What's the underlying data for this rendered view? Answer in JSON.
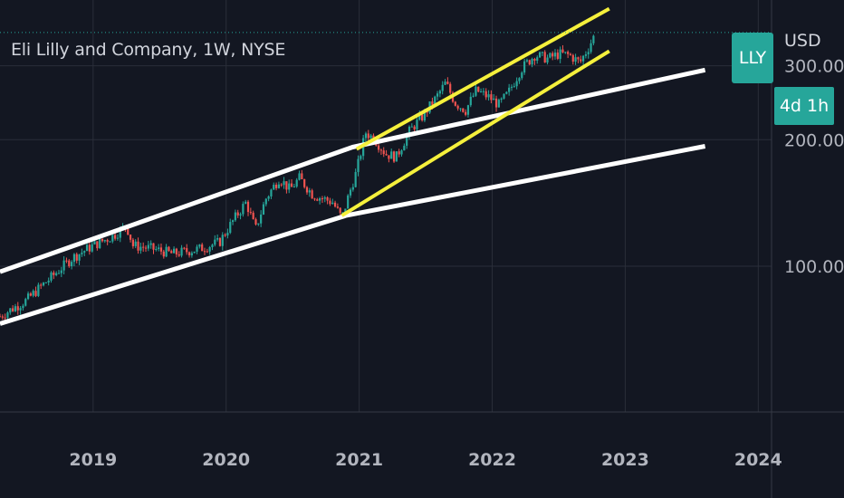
{
  "header": {
    "symbol_title": "Eli Lilly and Company, 1W, NYSE",
    "ticker_badge": "LLY",
    "currency": "USD",
    "countdown": "4d 1h"
  },
  "colors": {
    "background": "#131722",
    "grid": "#2a2e39",
    "up": "#26a69a",
    "down": "#ef5350",
    "channel_lines": "#f5f03c",
    "trend_lines": "#ffffff",
    "axis_text": "#b2b5be",
    "last_price_line": "#26a69a"
  },
  "chart_data": {
    "type": "candlestick",
    "title": "Eli Lilly and Company, 1W, NYSE",
    "xlabel": "",
    "ylabel": "",
    "x_range": [
      2018.3,
      2024.1
    ],
    "y_range": [
      45,
      430
    ],
    "y_scale": "log",
    "x_ticks": [
      {
        "value": 2019,
        "label": "2019"
      },
      {
        "value": 2020,
        "label": "2020"
      },
      {
        "value": 2021,
        "label": "2021"
      },
      {
        "value": 2022,
        "label": "2022"
      },
      {
        "value": 2023,
        "label": "2023"
      },
      {
        "value": 2024,
        "label": "2024"
      }
    ],
    "y_ticks": [
      {
        "value": 100,
        "label": "100.00"
      },
      {
        "value": 200,
        "label": "200.00"
      },
      {
        "value": 300,
        "label": "300.00"
      }
    ],
    "last_price": 360,
    "price_path": [
      [
        2018.3,
        76
      ],
      [
        2018.5,
        83
      ],
      [
        2018.7,
        95
      ],
      [
        2018.85,
        105
      ],
      [
        2019.0,
        112
      ],
      [
        2019.15,
        118
      ],
      [
        2019.25,
        125
      ],
      [
        2019.3,
        112
      ],
      [
        2019.45,
        110
      ],
      [
        2019.6,
        107
      ],
      [
        2019.8,
        110
      ],
      [
        2019.95,
        114
      ],
      [
        2020.05,
        128
      ],
      [
        2020.15,
        142
      ],
      [
        2020.22,
        122
      ],
      [
        2020.3,
        145
      ],
      [
        2020.4,
        162
      ],
      [
        2020.48,
        152
      ],
      [
        2020.55,
        162
      ],
      [
        2020.65,
        148
      ],
      [
        2020.8,
        142
      ],
      [
        2020.87,
        130
      ],
      [
        2020.92,
        147
      ],
      [
        2020.98,
        168
      ],
      [
        2021.05,
        208
      ],
      [
        2021.12,
        200
      ],
      [
        2021.2,
        185
      ],
      [
        2021.28,
        182
      ],
      [
        2021.38,
        210
      ],
      [
        2021.48,
        228
      ],
      [
        2021.58,
        252
      ],
      [
        2021.65,
        273
      ],
      [
        2021.72,
        245
      ],
      [
        2021.8,
        235
      ],
      [
        2021.88,
        262
      ],
      [
        2021.98,
        252
      ],
      [
        2022.05,
        242
      ],
      [
        2022.12,
        258
      ],
      [
        2022.22,
        295
      ],
      [
        2022.32,
        318
      ],
      [
        2022.42,
        312
      ],
      [
        2022.5,
        320
      ],
      [
        2022.58,
        318
      ],
      [
        2022.66,
        305
      ],
      [
        2022.72,
        330
      ],
      [
        2022.78,
        360
      ]
    ],
    "annotations": {
      "channel_upper": [
        [
          2020.98,
          190
        ],
        [
          2022.88,
          410
        ]
      ],
      "channel_lower": [
        [
          2020.87,
          132
        ],
        [
          2022.88,
          325
        ]
      ],
      "trend_upper": [
        [
          2018.3,
          97
        ],
        [
          2020.95,
          192
        ],
        [
          2023.6,
          293
        ]
      ],
      "trend_lower": [
        [
          2018.3,
          73
        ],
        [
          2020.9,
          132
        ],
        [
          2023.6,
          193
        ]
      ]
    }
  }
}
